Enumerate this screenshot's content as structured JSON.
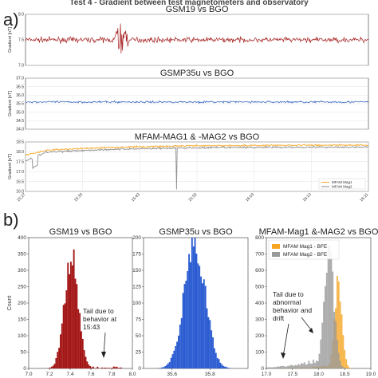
{
  "header": "Test 4 - Gradient between test magnetometers and observatory",
  "sections": {
    "a": "a)",
    "b": "b)"
  },
  "chart_data": [
    {
      "type": "line",
      "id": "a1",
      "title": "GSM19 vs BGO",
      "ylabel": "Gradient [nT]",
      "ylim": [
        7.0,
        8.0
      ],
      "yticks": [
        "7.0",
        "7.5",
        "8.0"
      ],
      "xticks": [],
      "series": [
        {
          "color": "#a31515",
          "baseline": 7.5,
          "noise": 0.05,
          "spike": {
            "from": 0.26,
            "to": 0.3,
            "amp": 0.2
          }
        }
      ]
    },
    {
      "type": "line",
      "id": "a2",
      "title": "GSMP35u vs BGO",
      "ylabel": "Gradient [nT]",
      "ylim": [
        34.0,
        37.0
      ],
      "yticks": [
        "34.0",
        "34.5",
        "35.0",
        "35.5",
        "36.0",
        "36.5",
        "37.0"
      ],
      "xticks": [],
      "series": [
        {
          "color": "#2255bb",
          "baseline": 35.6,
          "noise": 0.06
        }
      ]
    },
    {
      "type": "line",
      "id": "a3",
      "title": "MFAM-MAG1 & -MAG2 vs BGO",
      "ylabel": "Gradient [nT]",
      "ylim": [
        16.0,
        18.5
      ],
      "yticks": [
        "16.0",
        "16.5",
        "17.0",
        "17.5",
        "18.0",
        "18.5"
      ],
      "xticks": [
        "15:27",
        "15:33",
        "15:43",
        "15:53",
        "16:03",
        "16:13",
        "16:21"
      ],
      "series": [
        {
          "name": "MFAM Mag1",
          "color": "#f5a623",
          "start": 18.0,
          "end": 18.35
        },
        {
          "name": "MFAM Mag2",
          "color": "#8a8a8a",
          "start": 17.9,
          "end": 18.25,
          "dip": {
            "at": 0.44,
            "to": 16.1
          }
        }
      ]
    },
    {
      "type": "bar",
      "id": "b1",
      "title": "GSM19 vs BGO",
      "ylabel": "Count",
      "xlim": [
        7.0,
        8.0
      ],
      "ylim": [
        0,
        400
      ],
      "xticks": [
        "7.0",
        "7.2",
        "7.4",
        "7.6",
        "7.8",
        "8.0"
      ],
      "yticks": [
        "0",
        "50",
        "100",
        "150",
        "200",
        "250",
        "300",
        "350",
        "400"
      ],
      "series": [
        {
          "color": "#a31515",
          "center": 7.41,
          "sigma": 0.065,
          "peak": 348
        }
      ]
    },
    {
      "type": "bar",
      "id": "b2",
      "title": "GSMP35u vs BGO",
      "xlim": [
        35.45,
        36.0
      ],
      "ylim": [
        0,
        200
      ],
      "xticks": [
        "35.6",
        "35.8"
      ],
      "yticks": [
        "0",
        "25",
        "50",
        "75",
        "100",
        "125",
        "150",
        "175",
        "200"
      ],
      "series": [
        {
          "color": "#2a5bd1",
          "center": 35.72,
          "sigma": 0.055,
          "peak": 192
        }
      ]
    },
    {
      "type": "bar",
      "id": "b3",
      "title": "MFAM-Mag1 &-MAG2 vs BGO",
      "xlim": [
        17.0,
        19.0
      ],
      "ylim": [
        0,
        800
      ],
      "xticks": [
        "17.0",
        "17.5",
        "18.0",
        "18.5",
        "19.0"
      ],
      "yticks": [
        "0",
        "100",
        "200",
        "300",
        "400",
        "500",
        "600",
        "700",
        "800"
      ],
      "series": [
        {
          "name": "MFAM Mag1 - BFE",
          "color": "#f5a623",
          "center": 18.38,
          "sigma": 0.07,
          "peak": 520
        },
        {
          "name": "MFAM Mag2 - BFE",
          "color": "#9a9a9a",
          "center": 18.2,
          "sigma": 0.09,
          "peak": 710
        }
      ]
    }
  ],
  "annotations": {
    "gsm19": [
      "Tail due to",
      "behavior at",
      "15:43"
    ],
    "mfam": [
      "Tail due to",
      "abnormal",
      "behavior and",
      "drift"
    ]
  }
}
